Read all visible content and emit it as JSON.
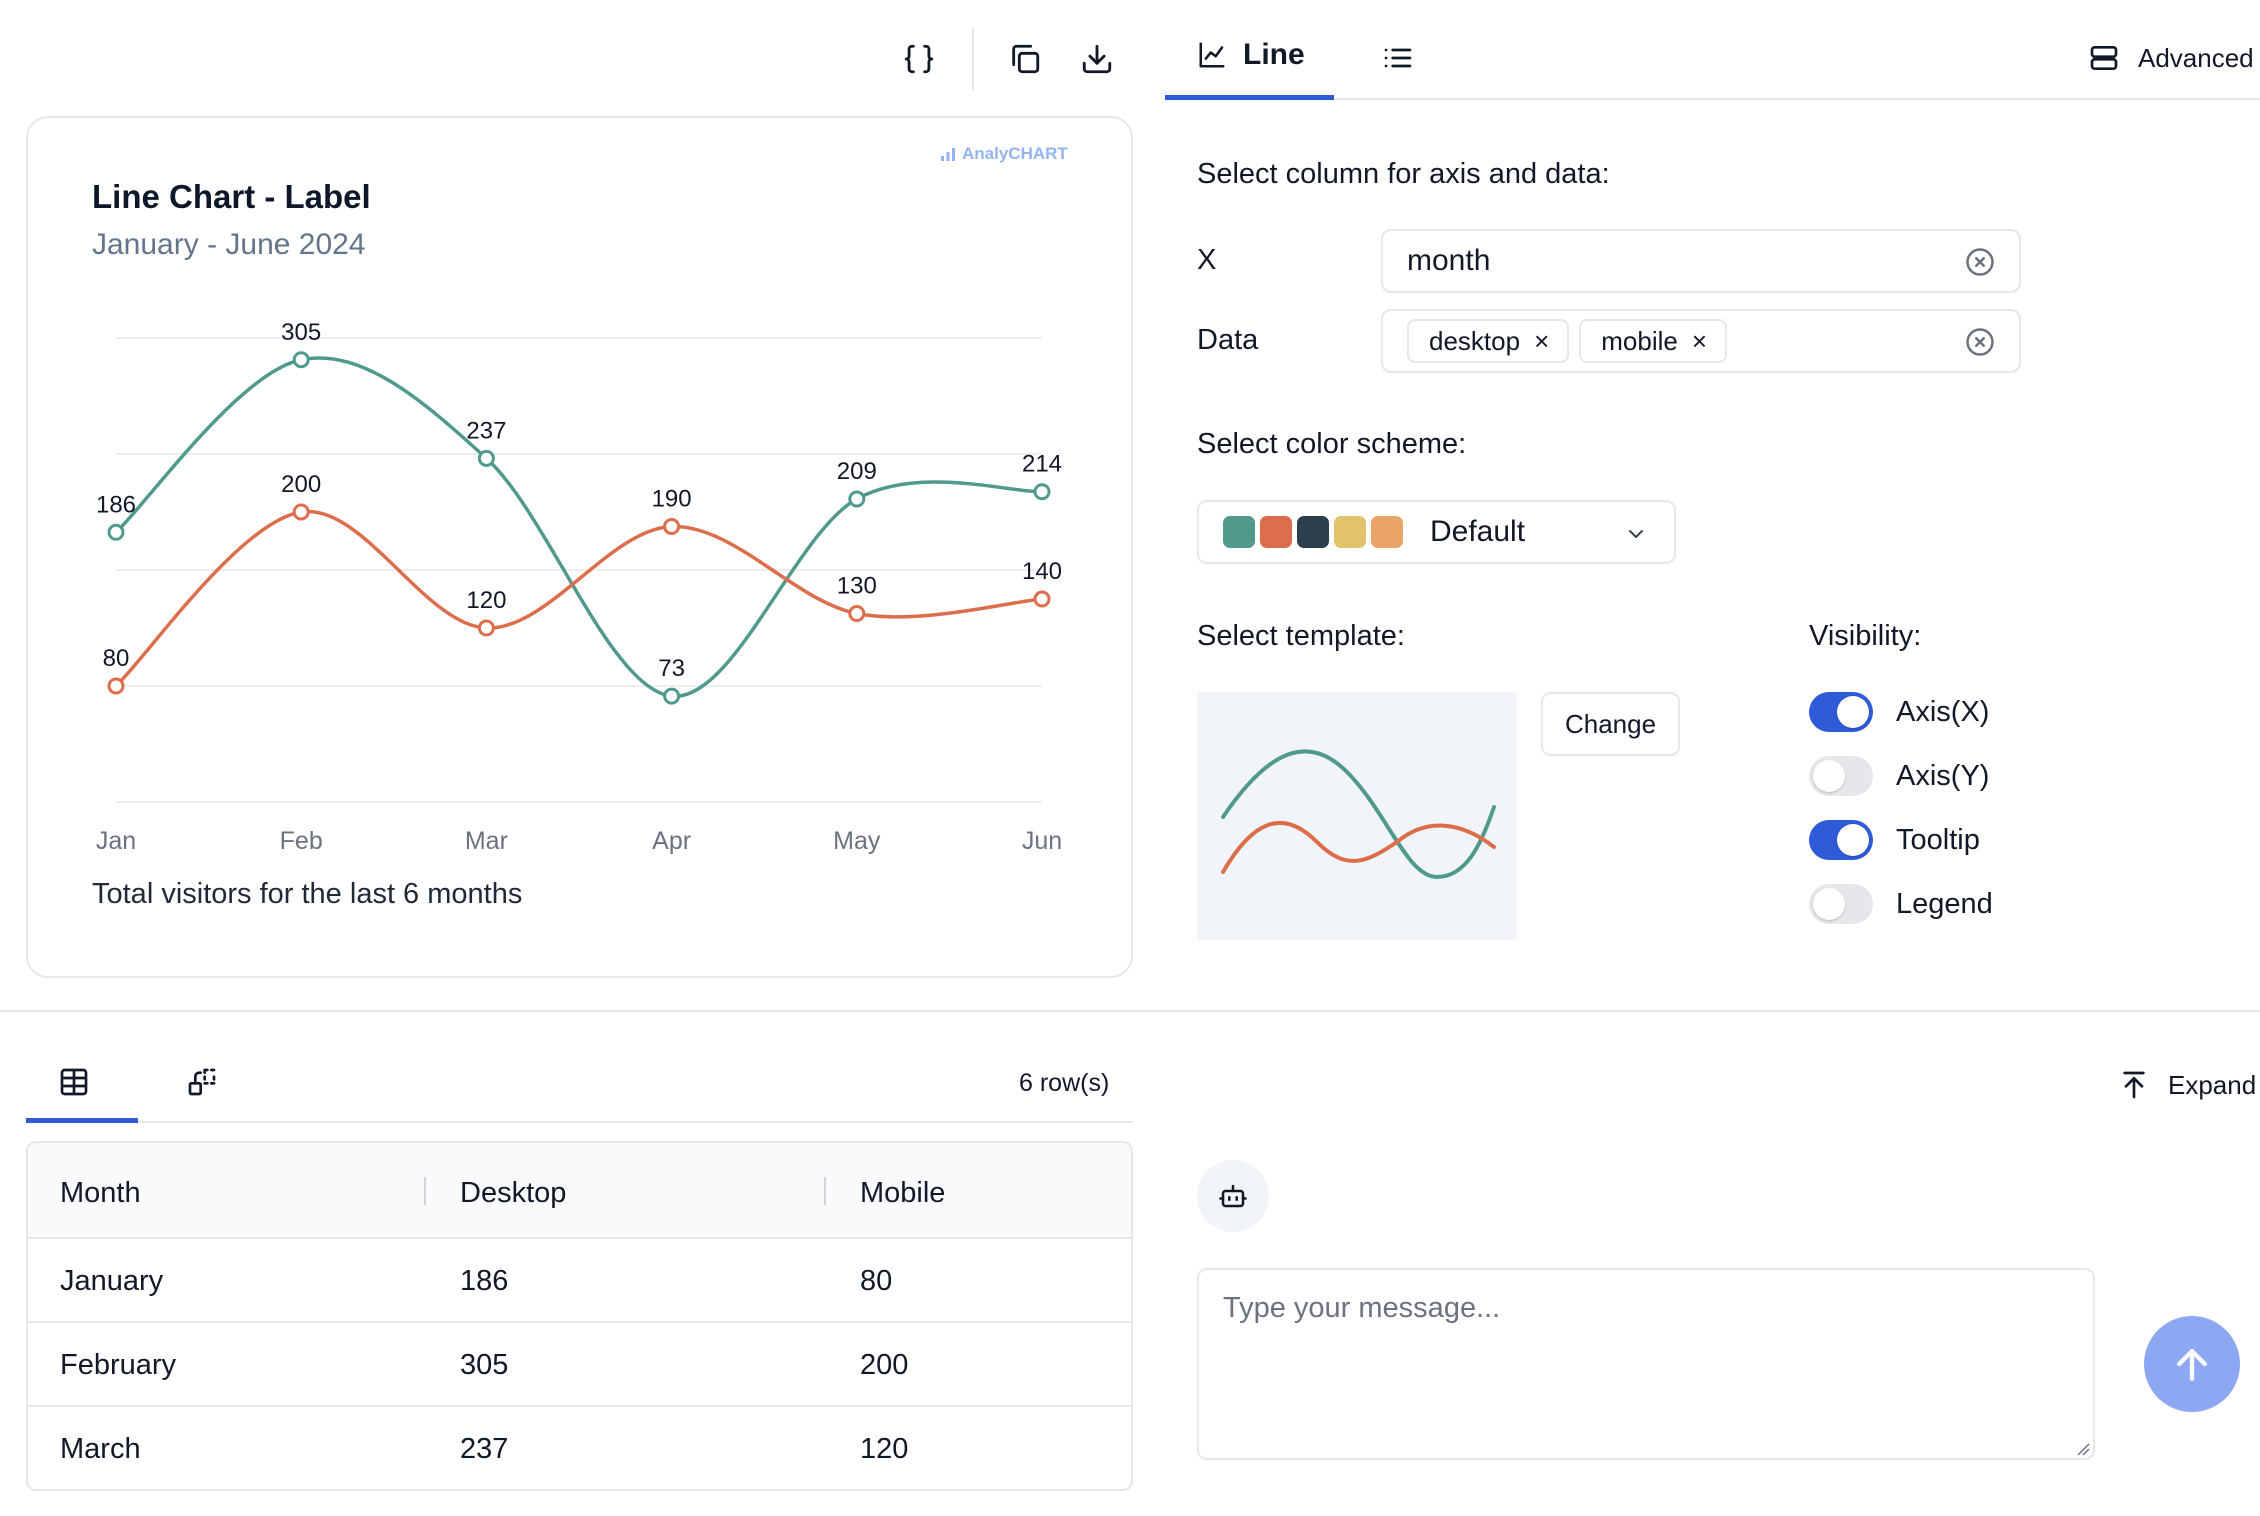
{
  "toolbar": {
    "json_icon": "braces-icon",
    "copy_icon": "copy-icon",
    "download_icon": "download-icon"
  },
  "chart_card": {
    "brand": "AnalyCHART",
    "title": "Line Chart - Label",
    "subtitle": "January - June 2024",
    "footer": "Total visitors for the last 6 months"
  },
  "chart_data": {
    "type": "line",
    "title": "Line Chart - Label",
    "subtitle": "January - June 2024",
    "categories": [
      "Jan",
      "Feb",
      "Mar",
      "Apr",
      "May",
      "Jun"
    ],
    "series": [
      {
        "name": "desktop",
        "values": [
          186,
          305,
          237,
          73,
          209,
          214
        ],
        "color": "#4f9a8c"
      },
      {
        "name": "mobile",
        "values": [
          80,
          200,
          120,
          190,
          130,
          140
        ],
        "color": "#dc6e4b"
      }
    ],
    "ylim": [
      0,
      320
    ],
    "grid": true,
    "y_axis_visible": false,
    "data_labels": true,
    "curve": "smooth"
  },
  "right_tabs": {
    "line_label": "Line",
    "advanced_label": "Advanced"
  },
  "config": {
    "axis_heading": "Select column for axis and data:",
    "x_label": "X",
    "x_value": "month",
    "data_label": "Data",
    "data_chips": [
      "desktop",
      "mobile"
    ],
    "chip_remove": "×",
    "color_heading": "Select color scheme:",
    "color_scheme": "Default",
    "swatches": [
      "#4f9a8c",
      "#dc6e4b",
      "#2b3f4e",
      "#e2c36b",
      "#e9a466"
    ],
    "template_heading": "Select template:",
    "change_label": "Change",
    "visibility_heading": "Visibility:",
    "toggles": [
      {
        "label": "Axis(X)",
        "on": true
      },
      {
        "label": "Axis(Y)",
        "on": false
      },
      {
        "label": "Tooltip",
        "on": true
      },
      {
        "label": "Legend",
        "on": false
      }
    ]
  },
  "table": {
    "row_count": "6 row(s)",
    "headers": [
      "Month",
      "Desktop",
      "Mobile"
    ],
    "rows": [
      [
        "January",
        "186",
        "80"
      ],
      [
        "February",
        "305",
        "200"
      ],
      [
        "March",
        "237",
        "120"
      ]
    ]
  },
  "chat": {
    "expand_label": "Expand",
    "placeholder": "Type your message..."
  }
}
